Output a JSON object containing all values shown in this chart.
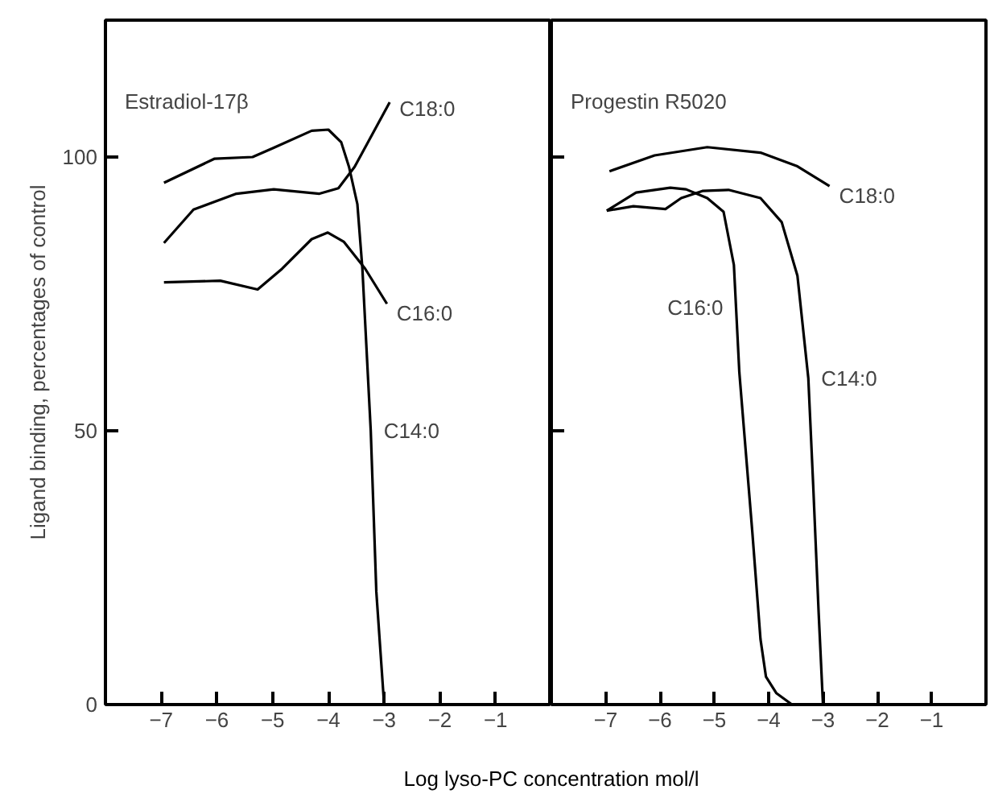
{
  "chart_data": [
    {
      "type": "line",
      "title": "Estradiol-17β",
      "ylabel": "Ligand binding, percentages of control",
      "xlabel": "Log lyso-PC concentration mol/l",
      "xlim": [
        -8,
        0
      ],
      "ylim": [
        0,
        125
      ],
      "xticks": [
        -7,
        -6,
        -5,
        -4,
        -3,
        -2,
        -1
      ],
      "yticks": [
        0,
        50,
        100
      ],
      "line_style": "solid",
      "series": [
        {
          "name": "C14:0",
          "color": "#000000",
          "x": [
            -6.95,
            -6.04,
            -5.36,
            -4.98,
            -4.3,
            -4.0,
            -3.77,
            -3.63,
            -3.48,
            -3.39,
            -3.24,
            -3.14,
            -3.0
          ],
          "values": [
            95.3,
            99.7,
            100,
            101.7,
            104.8,
            105,
            102.7,
            98.2,
            91.4,
            79.6,
            50,
            20.6,
            0
          ]
        },
        {
          "name": "C18:0",
          "color": "#000000",
          "x": [
            -6.95,
            -6.42,
            -5.65,
            -4.98,
            -4.16,
            -3.82,
            -3.53,
            -2.9
          ],
          "values": [
            84.3,
            90.4,
            93.3,
            94.1,
            93.3,
            94.3,
            98.2,
            110
          ]
        },
        {
          "name": "C16:0",
          "color": "#000000",
          "x": [
            -6.95,
            -5.94,
            -5.27,
            -4.83,
            -4.3,
            -4.01,
            -3.72,
            -3.34,
            -2.95
          ],
          "values": [
            77.1,
            77.4,
            75.8,
            79.6,
            85,
            86.2,
            84.5,
            79.6,
            73.2
          ]
        }
      ]
    },
    {
      "type": "line",
      "title": "Progestin R5020",
      "xlim": [
        -8,
        0
      ],
      "ylim": [
        0,
        125
      ],
      "xticks": [
        -7,
        -6,
        -5,
        -4,
        -3,
        -2,
        -1
      ],
      "yticks": [
        0,
        50,
        100
      ],
      "tick_labels": "x",
      "line_style": "solid",
      "series": [
        {
          "name": "C18:0",
          "color": "#000000",
          "x": [
            -6.93,
            -6.1,
            -5.13,
            -4.15,
            -3.47,
            -2.88
          ],
          "values": [
            97.4,
            100.3,
            101.8,
            100.8,
            98.3,
            94.7
          ]
        },
        {
          "name": "C16:0",
          "color": "#000000",
          "x": [
            -6.98,
            -6.44,
            -5.81,
            -5.52,
            -5.13,
            -4.83,
            -4.64,
            -4.54,
            -4.3,
            -4.15,
            -4.05,
            -3.86,
            -3.57
          ],
          "values": [
            90.2,
            93.5,
            94.4,
            94.1,
            92.5,
            90,
            80.3,
            60.7,
            31.4,
            11.9,
            5.1,
            2.1,
            0
          ]
        },
        {
          "name": "C14:0",
          "color": "#000000",
          "x": [
            -6.98,
            -6.49,
            -5.9,
            -5.61,
            -5.22,
            -4.74,
            -4.15,
            -3.76,
            -3.47,
            -3.27,
            -3.18,
            -3.08,
            -3.0
          ],
          "values": [
            90.2,
            91,
            90.5,
            92.5,
            93.8,
            94,
            92.5,
            88.1,
            78.3,
            59.6,
            40,
            16.8,
            0
          ]
        }
      ]
    }
  ]
}
